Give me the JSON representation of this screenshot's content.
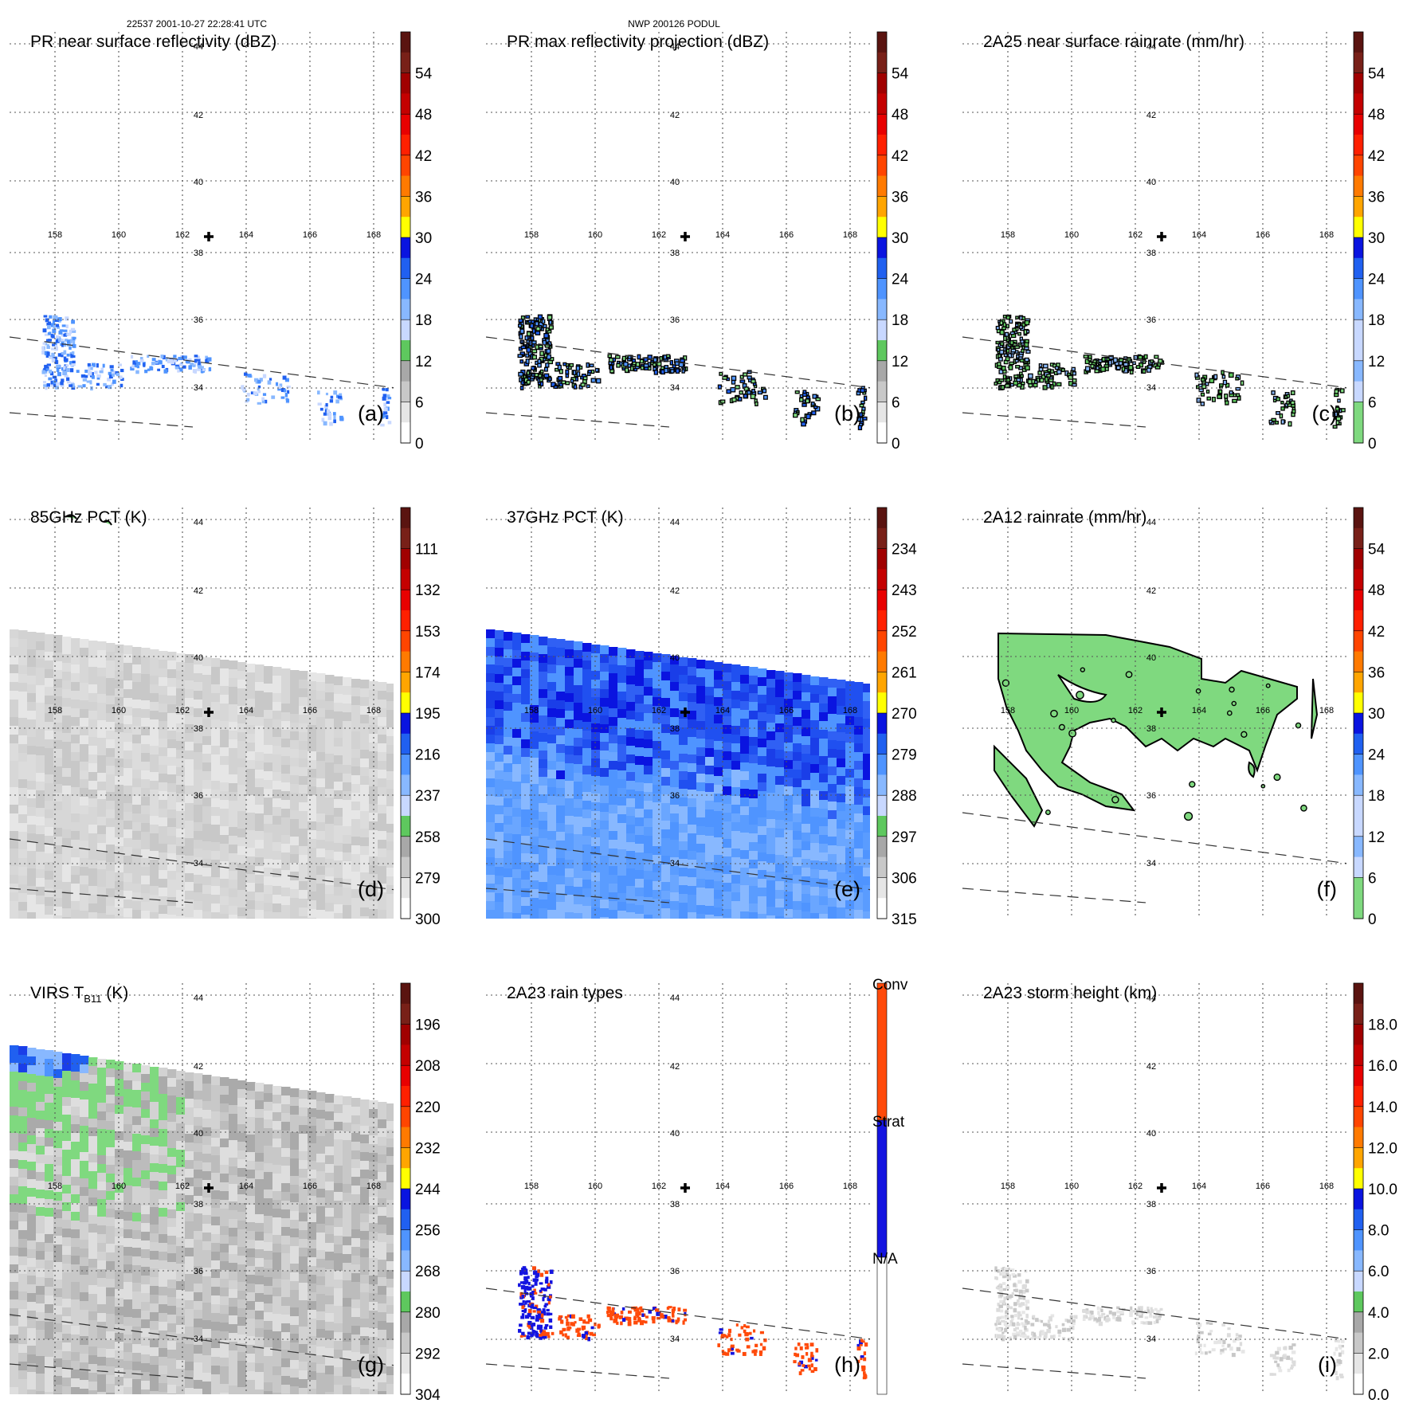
{
  "header": {
    "left": "22537 2001-10-27 22:28:41 UTC",
    "center": "NWP 200126 PODUL"
  },
  "grid": {
    "lon_labels": [
      "158",
      "160",
      "162",
      "164",
      "166",
      "168"
    ],
    "lat_labels": [
      "44",
      "42",
      "40",
      "38",
      "36",
      "34"
    ]
  },
  "colors": {
    "scale12": [
      "#ffffff",
      "#e6e6e6",
      "#c8c8c8",
      "#a8a8a8",
      "#7fd97f",
      "#5ec85e",
      "#c8d8ff",
      "#88b8ff",
      "#4f94ff",
      "#2060f0",
      "#0a14e0",
      "#ffff00",
      "#ffd200",
      "#ffa500",
      "#ff7a00",
      "#ff4500",
      "#ff2000",
      "#e80000",
      "#c40000",
      "#a00000",
      "#782018",
      "#5a1410"
    ],
    "conv": "#ff4a0a",
    "strat": "#1414e0",
    "na": "#ffffff"
  },
  "chart_data": [
    {
      "id": "a",
      "type": "heatmap",
      "title": "PR near surface reflectivity (dBZ)",
      "panel_label": "(a)",
      "colorbar": {
        "labels": [
          "54",
          "48",
          "42",
          "36",
          "30",
          "24",
          "18",
          "12",
          "6",
          "0"
        ],
        "range": [
          0,
          60
        ]
      },
      "field": "pr_surface"
    },
    {
      "id": "b",
      "type": "heatmap",
      "title": "PR max reflectivity projection (dBZ)",
      "panel_label": "(b)",
      "colorbar": {
        "labels": [
          "54",
          "48",
          "42",
          "36",
          "30",
          "24",
          "18",
          "12",
          "6",
          "0"
        ],
        "range": [
          0,
          60
        ]
      },
      "field": "pr_max"
    },
    {
      "id": "c",
      "type": "heatmap",
      "title": "2A25 near surface rainrate (mm/hr)",
      "panel_label": "(c)",
      "colorbar": {
        "labels": [
          "54",
          "48",
          "42",
          "36",
          "30",
          "24",
          "18",
          "12",
          "6",
          "0"
        ],
        "range": [
          0,
          60
        ]
      },
      "field": "rain_2a25"
    },
    {
      "id": "d",
      "type": "heatmap",
      "title": "85GHz PCT (K)",
      "panel_label": "(d)",
      "colorbar": {
        "labels": [
          "111",
          "132",
          "153",
          "174",
          "195",
          "216",
          "237",
          "258",
          "279",
          "300"
        ],
        "range": [
          300,
          90
        ]
      },
      "field": "pct85"
    },
    {
      "id": "e",
      "type": "heatmap",
      "title": "37GHz PCT (K)",
      "panel_label": "(e)",
      "colorbar": {
        "labels": [
          "234",
          "243",
          "252",
          "261",
          "270",
          "279",
          "288",
          "297",
          "306",
          "315"
        ],
        "range": [
          315,
          225
        ]
      },
      "field": "pct37"
    },
    {
      "id": "f",
      "type": "heatmap",
      "title": "2A12 rainrate (mm/hr)",
      "panel_label": "(f)",
      "colorbar": {
        "labels": [
          "54",
          "48",
          "42",
          "36",
          "30",
          "24",
          "18",
          "12",
          "6",
          "0"
        ],
        "range": [
          0,
          60
        ]
      },
      "field": "rain_2a12"
    },
    {
      "id": "g",
      "type": "heatmap",
      "title_main": "VIRS T",
      "title_sub": "B11",
      "title_tail": " (K)",
      "panel_label": "(g)",
      "colorbar": {
        "labels": [
          "196",
          "208",
          "220",
          "232",
          "244",
          "256",
          "268",
          "280",
          "292",
          "304"
        ],
        "range": [
          304,
          184
        ]
      },
      "field": "virs"
    },
    {
      "id": "h",
      "type": "heatmap",
      "title": "2A23 rain types",
      "panel_label": "(h)",
      "colorbar": {
        "categories": [
          "Conv",
          "Strat",
          "N/A"
        ]
      },
      "field": "rain_types"
    },
    {
      "id": "i",
      "type": "heatmap",
      "title": "2A23 storm height (km)",
      "panel_label": "(i)",
      "colorbar": {
        "labels": [
          "18.0",
          "16.0",
          "14.0",
          "12.0",
          "10.0",
          "8.0",
          "6.0",
          "4.0",
          "2.0",
          "0.0"
        ],
        "range": [
          0,
          20
        ]
      },
      "field": "storm_height"
    }
  ]
}
